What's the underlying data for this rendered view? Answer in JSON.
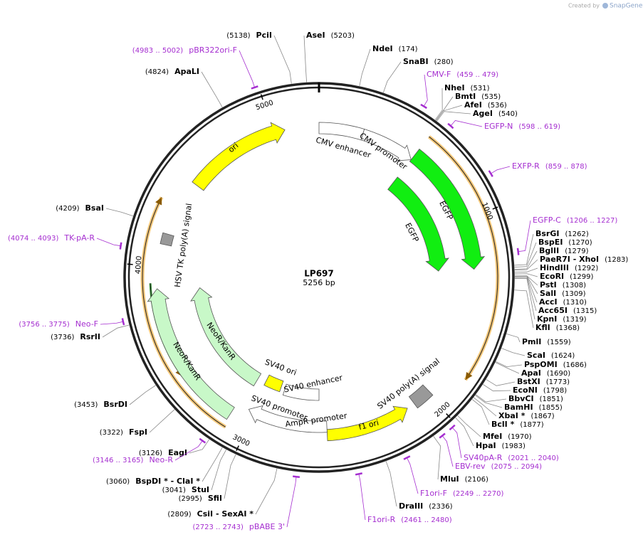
{
  "header": {
    "title": "LP697",
    "subtitle": "5256 bp"
  },
  "watermark": {
    "prefix": "Created by",
    "brand": "SnapGene"
  },
  "ticks": [
    1000,
    2000,
    3000,
    4000,
    5000
  ],
  "sites": [
    {
      "name": "PciI",
      "position": "(5138)"
    },
    {
      "name": "AseI",
      "position": "(5203)"
    },
    {
      "name": "NdeI",
      "position": "(174)"
    },
    {
      "name": "SnaBI",
      "position": "(280)"
    },
    {
      "name": "NheI",
      "position": "(531)"
    },
    {
      "name": "BmtI",
      "position": "(535)"
    },
    {
      "name": "AfeI",
      "position": "(536)"
    },
    {
      "name": "AgeI",
      "position": "(540)"
    },
    {
      "name": "BsrGI",
      "position": "(1262)"
    },
    {
      "name": "BspEI",
      "position": "(1270)"
    },
    {
      "name": "BglII",
      "position": "(1279)"
    },
    {
      "name": "PaeR7I - XhoI",
      "position": "(1283)"
    },
    {
      "name": "HindIII",
      "position": "(1292)"
    },
    {
      "name": "EcoRI",
      "position": "(1299)"
    },
    {
      "name": "PstI",
      "position": "(1308)"
    },
    {
      "name": "SalI",
      "position": "(1309)"
    },
    {
      "name": "AccI",
      "position": "(1310)"
    },
    {
      "name": "Acc65I",
      "position": "(1315)"
    },
    {
      "name": "KpnI",
      "position": "(1319)"
    },
    {
      "name": "KflI",
      "position": "(1368)"
    },
    {
      "name": "PmlI",
      "position": "(1559)"
    },
    {
      "name": "ScaI",
      "position": "(1624)"
    },
    {
      "name": "PspOMI",
      "position": "(1686)"
    },
    {
      "name": "ApaI",
      "position": "(1690)"
    },
    {
      "name": "BstXI",
      "position": "(1773)"
    },
    {
      "name": "EcoNI",
      "position": "(1798)"
    },
    {
      "name": "BbvCI",
      "position": "(1851)"
    },
    {
      "name": "BamHI",
      "position": "(1855)"
    },
    {
      "name": "XbaI *",
      "position": "(1867)"
    },
    {
      "name": "BclI *",
      "position": "(1877)"
    },
    {
      "name": "MfeI",
      "position": "(1970)"
    },
    {
      "name": "HpaI",
      "position": "(1983)"
    },
    {
      "name": "MluI",
      "position": "(2106)"
    },
    {
      "name": "DraIII",
      "position": "(2336)"
    },
    {
      "name": "ApaLI",
      "position": "(4824)"
    },
    {
      "name": "BsaI",
      "position": "(4209)"
    },
    {
      "name": "RsrII",
      "position": "(3736)"
    },
    {
      "name": "BsrDI",
      "position": "(3453)"
    },
    {
      "name": "FspI",
      "position": "(3322)"
    },
    {
      "name": "EagI",
      "position": "(3126)"
    },
    {
      "name": "BspDI * - ClaI *",
      "position": "(3060)"
    },
    {
      "name": "StuI",
      "position": "(3041)"
    },
    {
      "name": "SfiI",
      "position": "(2995)"
    },
    {
      "name": "CsiI - SexAI *",
      "position": "(2809)"
    }
  ],
  "primers": [
    {
      "name": "pBR322ori-F",
      "range": "(4983 .. 5002)"
    },
    {
      "name": "CMV-F",
      "range": "(459 .. 479)"
    },
    {
      "name": "EGFP-N",
      "range": "(598 .. 619)"
    },
    {
      "name": "EXFP-R",
      "range": "(859 .. 878)"
    },
    {
      "name": "EGFP-C",
      "range": "(1206 .. 1227)"
    },
    {
      "name": "TK-pA-R",
      "range": "(4074 .. 4093)"
    },
    {
      "name": "Neo-F",
      "range": "(3756 .. 3775)"
    },
    {
      "name": "Neo-R",
      "range": "(3146 .. 3165)"
    },
    {
      "name": "SV40pA-R",
      "range": "(2021 .. 2040)"
    },
    {
      "name": "EBV-rev",
      "range": "(2075 .. 2094)"
    },
    {
      "name": "F1ori-F",
      "range": "(2249 .. 2270)"
    },
    {
      "name": "F1ori-R",
      "range": "(2461 .. 2480)"
    },
    {
      "name": "pBABE 3'",
      "range": "(2723 .. 2743)"
    }
  ],
  "features": [
    "ori",
    "CMV enhancer",
    "CMV promoter",
    "EGFP",
    "EGFP",
    "SV40 poly(A) signal",
    "f1 ori",
    "AmpR promoter",
    "SV40 promoter",
    "SV40 ori",
    "SV40 enhancer",
    "NeoR/KanR",
    "NeoR/KanR",
    "HSV TK poly(A) signal"
  ]
}
